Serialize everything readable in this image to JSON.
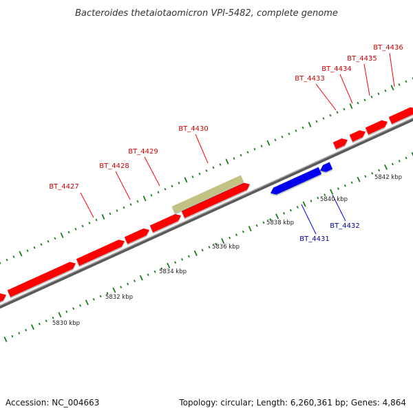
{
  "title": "Bacteroides thetaiotaomicron VPI-5482, complete genome",
  "footer": {
    "accession_label": "Accession:",
    "accession": "NC_004663",
    "summary": "Topology: circular; Length: 6,260,361 bp; Genes: 4,864"
  },
  "colors": {
    "forward_gene": "#ff0000",
    "reverse_gene": "#0000ee",
    "other_feature": "#c2c284",
    "cyan_feature": "#00bfff",
    "backbone": "#808080",
    "tick": "#1a7a1a",
    "forward_label": "#cc0000",
    "reverse_label": "#000099"
  },
  "scale": {
    "ticks": [
      {
        "label": "5830 kbp"
      },
      {
        "label": "5832 kbp"
      },
      {
        "label": "5834 kbp"
      },
      {
        "label": "5836 kbp"
      },
      {
        "label": "5838 kbp"
      },
      {
        "label": "5840 kbp"
      },
      {
        "label": "5842 kbp"
      }
    ]
  },
  "genes": [
    {
      "id": "BT_4427",
      "strand": "forward"
    },
    {
      "id": "BT_4428",
      "strand": "forward"
    },
    {
      "id": "BT_4429",
      "strand": "forward"
    },
    {
      "id": "BT_4430",
      "strand": "forward"
    },
    {
      "id": "BT_4431",
      "strand": "reverse"
    },
    {
      "id": "BT_4432",
      "strand": "reverse"
    },
    {
      "id": "BT_4433",
      "strand": "forward"
    },
    {
      "id": "BT_4434",
      "strand": "forward"
    },
    {
      "id": "BT_4435",
      "strand": "forward"
    },
    {
      "id": "BT_4436",
      "strand": "forward"
    }
  ]
}
